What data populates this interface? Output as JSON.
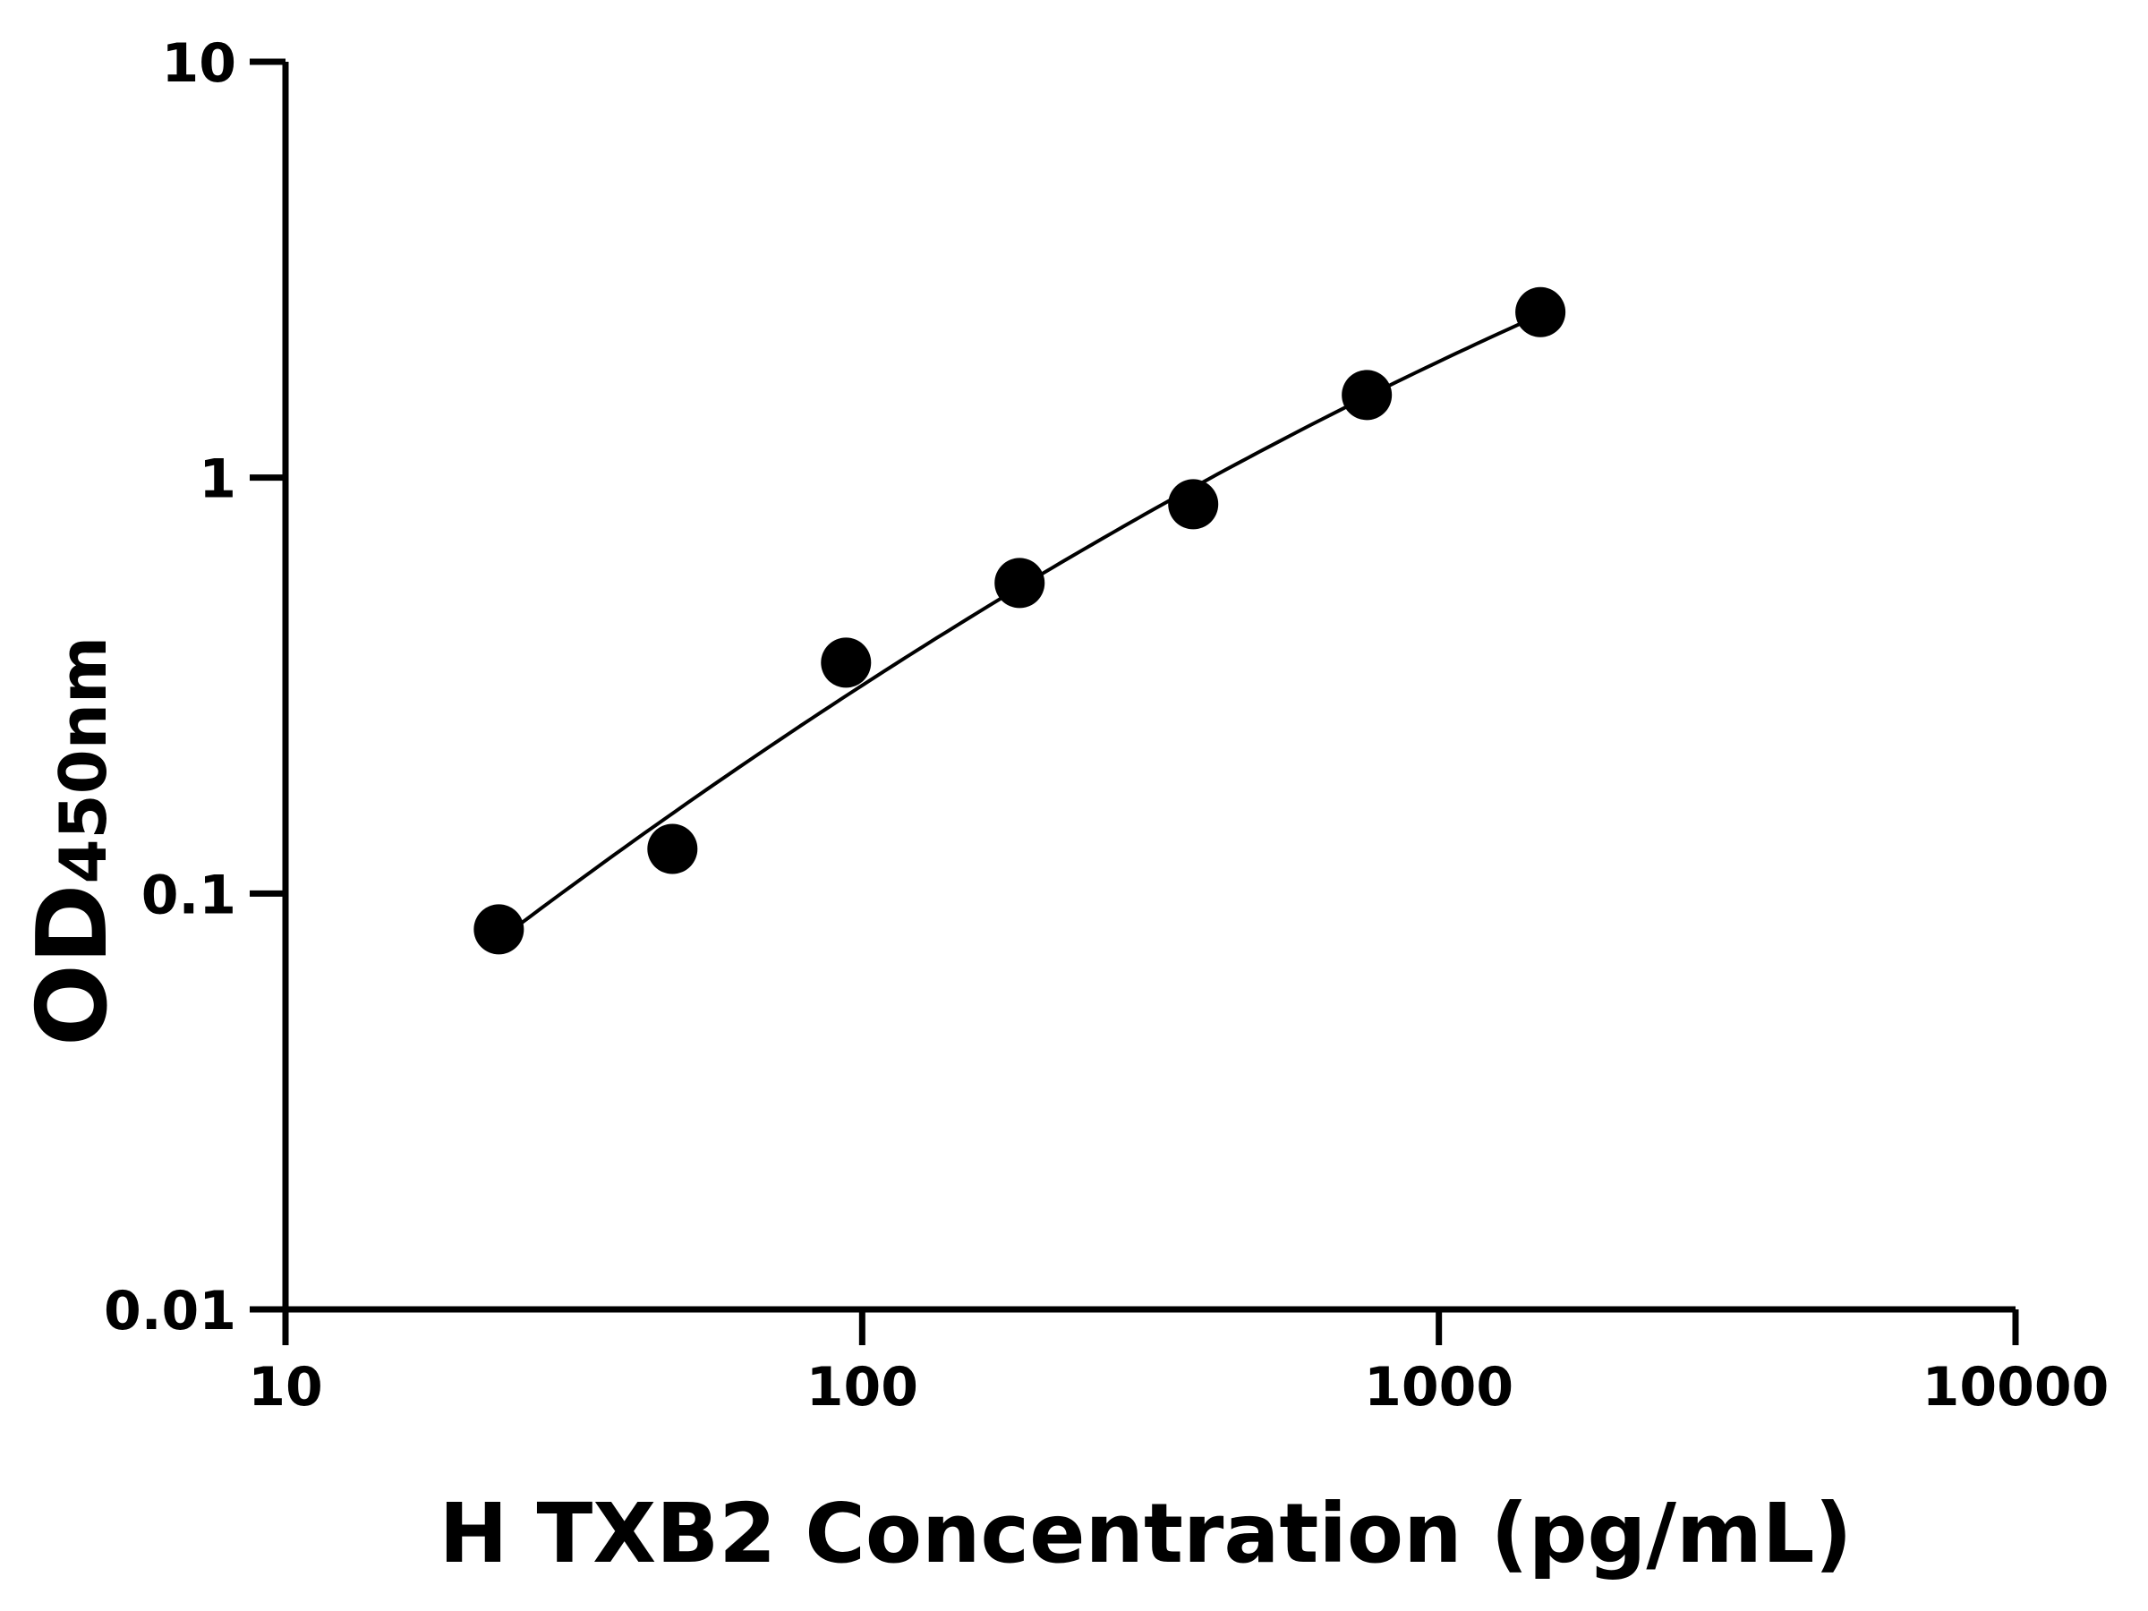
{
  "chart_data": {
    "type": "scatter",
    "title": "",
    "xlabel": "H TXB2 Concentration (pg/mL)",
    "ylabel": "OD",
    "ylabel_subscript": "450nm",
    "x_scale": "log",
    "y_scale": "log",
    "xlim": [
      10,
      10000
    ],
    "ylim": [
      0.01,
      10
    ],
    "x_ticks": [
      "10",
      "100",
      "1000",
      "10000"
    ],
    "y_ticks": [
      "0.01",
      "0.1",
      "1",
      "10"
    ],
    "grid": false,
    "legend": "none",
    "fit_curve": true,
    "colors": {
      "points": "#000000",
      "curve": "#000000",
      "axes": "#000000"
    },
    "series": [
      {
        "x": [
          23.4375,
          46.875,
          93.75,
          187.5,
          375,
          750,
          1500
        ],
        "y": [
          0.082,
          0.128,
          0.359,
          0.558,
          0.863,
          1.58,
          2.5
        ]
      }
    ]
  }
}
